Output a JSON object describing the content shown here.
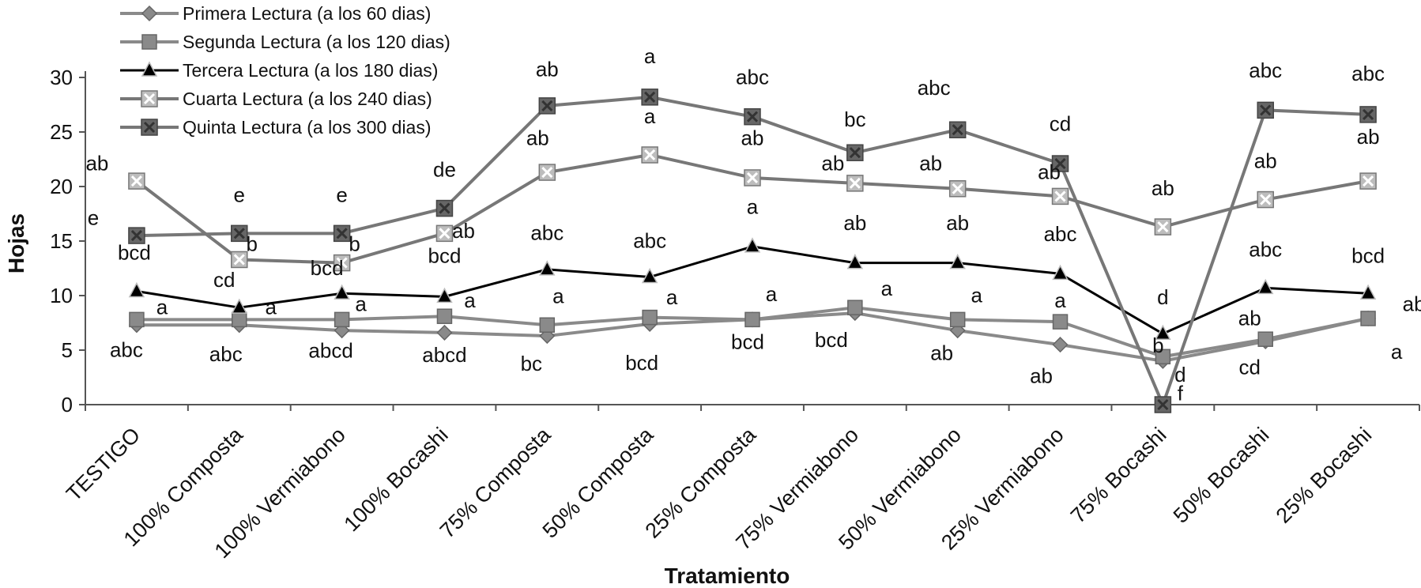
{
  "chart_data": {
    "type": "line",
    "title": "",
    "xlabel": "Tratamiento",
    "ylabel": "Hojas",
    "ylim": [
      0,
      30
    ],
    "yticks": [
      0,
      5,
      10,
      15,
      20,
      25,
      30
    ],
    "categories": [
      "TESTIGO",
      "100%  Composta",
      "100% Vermiabono",
      "100%  Bocashi",
      "75% Composta",
      "50% Composta",
      "25% Composta",
      "75% Vermiabono",
      "50% Vermiabono",
      "25% Vermiabono",
      "75% Bocashi",
      "50% Bocashi",
      "25% Bocashi"
    ],
    "legend_position": "top-left",
    "series": [
      {
        "name": "Primera Lectura (a los 60 dias)",
        "marker": "diamond",
        "color": "#8a8a8a",
        "values": [
          7.3,
          7.3,
          6.8,
          6.6,
          6.3,
          7.4,
          7.8,
          8.4,
          6.8,
          5.5,
          4.0,
          5.8,
          7.9
        ]
      },
      {
        "name": "Segunda Lectura (a los 120 dias)",
        "marker": "square",
        "color": "#8a8a8a",
        "values": [
          7.8,
          7.8,
          7.8,
          8.1,
          7.3,
          8.0,
          7.8,
          8.9,
          7.8,
          7.6,
          4.4,
          6.0,
          7.9
        ]
      },
      {
        "name": "Tercera Lectura (a los 180 dias)",
        "marker": "triangle",
        "color": "#000000",
        "values": [
          10.4,
          8.9,
          10.2,
          9.9,
          12.4,
          11.7,
          14.5,
          13.0,
          13.0,
          12.0,
          6.5,
          10.7,
          10.2
        ]
      },
      {
        "name": "Cuarta Lectura (a los 240 dias)",
        "marker": "xsquare",
        "color": "#777777",
        "values": [
          20.5,
          13.3,
          13.0,
          15.7,
          21.3,
          22.9,
          20.8,
          20.3,
          19.8,
          19.1,
          16.3,
          18.8,
          20.5
        ]
      },
      {
        "name": "Quinta Lectura (a los 300 dias)",
        "marker": "xsquare-dark",
        "color": "#777777",
        "values": [
          15.5,
          15.7,
          15.7,
          18.0,
          27.4,
          28.2,
          26.4,
          23.1,
          25.2,
          22.1,
          0.0,
          27.0,
          26.6
        ]
      }
    ],
    "annotations": [
      {
        "text": "ab",
        "cat": 0,
        "dx": -50,
        "y": 21.5
      },
      {
        "text": "e",
        "cat": 0,
        "dx": -55,
        "y": 16.5
      },
      {
        "text": "bcd",
        "cat": 0,
        "dx": -3,
        "y": 13.3
      },
      {
        "text": "a",
        "cat": 0,
        "dx": 32,
        "y": 8.3
      },
      {
        "text": "abc",
        "cat": 0,
        "dx": -13,
        "y": 4.4
      },
      {
        "text": "e",
        "cat": 1,
        "dx": 0,
        "y": 18.6
      },
      {
        "text": "b",
        "cat": 1,
        "dx": 16,
        "y": 14.1
      },
      {
        "text": "cd",
        "cat": 1,
        "dx": -19,
        "y": 10.8
      },
      {
        "text": "a",
        "cat": 1,
        "dx": 40,
        "y": 8.3
      },
      {
        "text": "abc",
        "cat": 1,
        "dx": -17,
        "y": 4.0
      },
      {
        "text": "e",
        "cat": 2,
        "dx": 0,
        "y": 18.6
      },
      {
        "text": "b",
        "cat": 2,
        "dx": 16,
        "y": 14.1
      },
      {
        "text": "bcd",
        "cat": 2,
        "dx": -19,
        "y": 11.9
      },
      {
        "text": "a",
        "cat": 2,
        "dx": 24,
        "y": 8.6
      },
      {
        "text": "abcd",
        "cat": 2,
        "dx": -14,
        "y": 4.3
      },
      {
        "text": "de",
        "cat": 3,
        "dx": 0,
        "y": 20.9
      },
      {
        "text": "ab",
        "cat": 3,
        "dx": 24,
        "y": 15.3
      },
      {
        "text": "bcd",
        "cat": 3,
        "dx": 0,
        "y": 13.0
      },
      {
        "text": "a",
        "cat": 3,
        "dx": 32,
        "y": 8.9
      },
      {
        "text": "abcd",
        "cat": 3,
        "dx": 0,
        "y": 3.9
      },
      {
        "text": "ab",
        "cat": 4,
        "dx": 0,
        "y": 30.1
      },
      {
        "text": "ab",
        "cat": 4,
        "dx": -12,
        "y": 23.8
      },
      {
        "text": "abc",
        "cat": 4,
        "dx": 0,
        "y": 15.1
      },
      {
        "text": "a",
        "cat": 4,
        "dx": 14,
        "y": 9.3
      },
      {
        "text": "bc",
        "cat": 4,
        "dx": -20,
        "y": 3.1
      },
      {
        "text": "a",
        "cat": 5,
        "dx": 0,
        "y": 31.3
      },
      {
        "text": "a",
        "cat": 5,
        "dx": 0,
        "y": 25.8
      },
      {
        "text": "abc",
        "cat": 5,
        "dx": 0,
        "y": 14.4
      },
      {
        "text": "a",
        "cat": 5,
        "dx": 28,
        "y": 9.2
      },
      {
        "text": "bcd",
        "cat": 5,
        "dx": -10,
        "y": 3.2
      },
      {
        "text": "abc",
        "cat": 6,
        "dx": 0,
        "y": 29.4
      },
      {
        "text": "ab",
        "cat": 6,
        "dx": 0,
        "y": 23.8
      },
      {
        "text": "a",
        "cat": 6,
        "dx": 0,
        "y": 17.5
      },
      {
        "text": "a",
        "cat": 6,
        "dx": 24,
        "y": 9.5
      },
      {
        "text": "bcd",
        "cat": 6,
        "dx": -6,
        "y": 5.1
      },
      {
        "text": "bc",
        "cat": 7,
        "dx": 0,
        "y": 25.5
      },
      {
        "text": "ab",
        "cat": 7,
        "dx": -28,
        "y": 21.5
      },
      {
        "text": "ab",
        "cat": 7,
        "dx": 0,
        "y": 16.0
      },
      {
        "text": "a",
        "cat": 7,
        "dx": 40,
        "y": 10.0
      },
      {
        "text": "bcd",
        "cat": 7,
        "dx": -30,
        "y": 5.3
      },
      {
        "text": "abc",
        "cat": 8,
        "dx": -30,
        "y": 28.4
      },
      {
        "text": "ab",
        "cat": 8,
        "dx": -34,
        "y": 21.5
      },
      {
        "text": "ab",
        "cat": 8,
        "dx": 0,
        "y": 16.0
      },
      {
        "text": "a",
        "cat": 8,
        "dx": 24,
        "y": 9.4
      },
      {
        "text": "ab",
        "cat": 8,
        "dx": -20,
        "y": 4.1
      },
      {
        "text": "cd",
        "cat": 9,
        "dx": 0,
        "y": 25.1
      },
      {
        "text": "ab",
        "cat": 9,
        "dx": -14,
        "y": 20.7
      },
      {
        "text": "abc",
        "cat": 9,
        "dx": 0,
        "y": 15.0
      },
      {
        "text": "a",
        "cat": 9,
        "dx": 0,
        "y": 8.9
      },
      {
        "text": "ab",
        "cat": 9,
        "dx": -24,
        "y": 2.0
      },
      {
        "text": "ab",
        "cat": 10,
        "dx": 0,
        "y": 19.2
      },
      {
        "text": "d",
        "cat": 10,
        "dx": 0,
        "y": 9.2
      },
      {
        "text": "b",
        "cat": 10,
        "dx": -6,
        "y": 4.8
      },
      {
        "text": "d",
        "cat": 10,
        "dx": 22,
        "y": 2.1
      },
      {
        "text": "f",
        "cat": 10,
        "dx": 22,
        "y": 0.4
      },
      {
        "text": "abc",
        "cat": 11,
        "dx": 0,
        "y": 30.0
      },
      {
        "text": "ab",
        "cat": 11,
        "dx": 0,
        "y": 21.7
      },
      {
        "text": "abc",
        "cat": 11,
        "dx": 0,
        "y": 13.6
      },
      {
        "text": "ab",
        "cat": 11,
        "dx": -20,
        "y": 7.3
      },
      {
        "text": "cd",
        "cat": 11,
        "dx": -20,
        "y": 2.8
      },
      {
        "text": "abc",
        "cat": 12,
        "dx": 0,
        "y": 29.7
      },
      {
        "text": "ab",
        "cat": 12,
        "dx": 0,
        "y": 23.9
      },
      {
        "text": "bcd",
        "cat": 12,
        "dx": 0,
        "y": 13.0
      },
      {
        "text": "ab",
        "cat": 12,
        "dx": 58,
        "y": 8.6
      },
      {
        "text": "a",
        "cat": 12,
        "dx": 36,
        "y": 4.2
      }
    ]
  }
}
